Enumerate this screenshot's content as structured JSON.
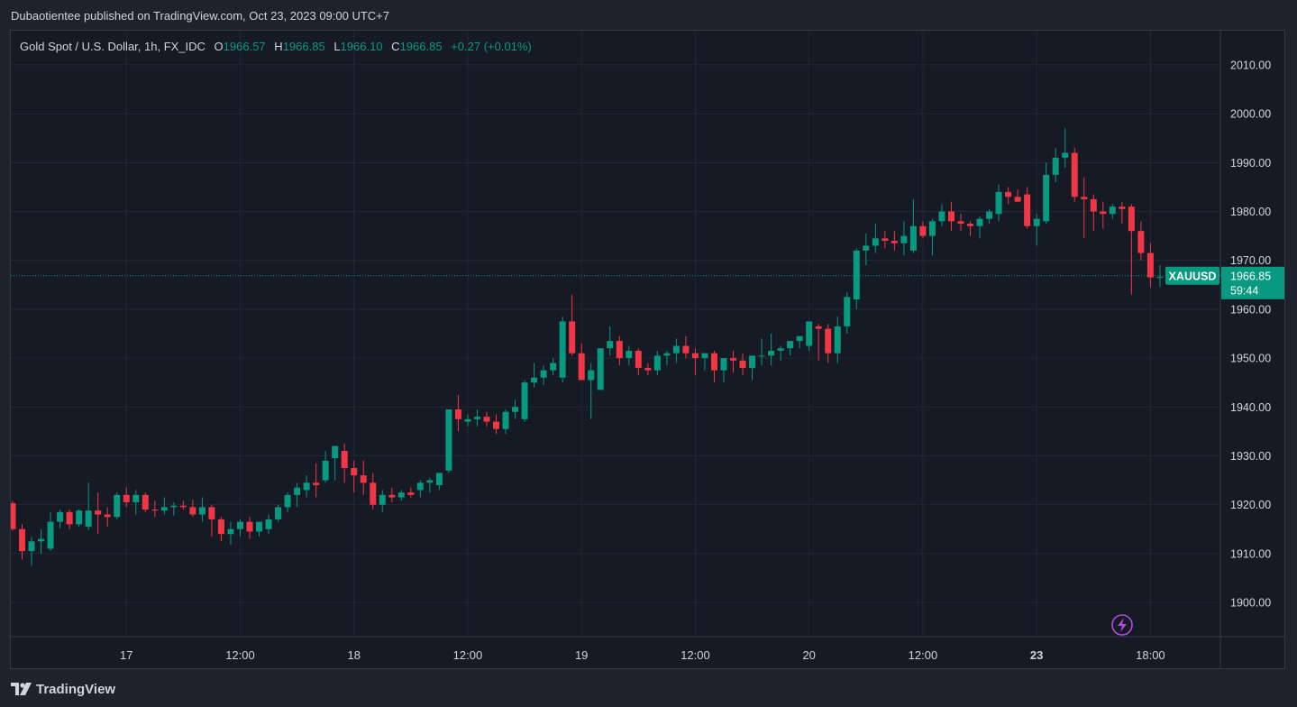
{
  "header": {
    "published": "Dubaotientee published on TradingView.com, Oct 23, 2023 09:00 UTC+7"
  },
  "legend": {
    "symbol": "Gold Spot / U.S. Dollar, 1h, FX_IDC",
    "o_label": "O",
    "o_value": "1966.57",
    "h_label": "H",
    "h_value": "1966.85",
    "l_label": "L",
    "l_value": "1966.10",
    "c_label": "C",
    "c_value": "1966.85",
    "change": "+0.27 (+0.01%)"
  },
  "price_tag": {
    "symbol": "XAUUSD",
    "price": "1966.85",
    "countdown": "59:44"
  },
  "footer": {
    "brand": "TradingView"
  },
  "colors": {
    "up": "#089981",
    "down": "#f23645",
    "background": "#161a25",
    "grid": "#232733",
    "text": "#d1d4dc"
  },
  "icons": {
    "lightning": "lightning-icon",
    "logo": "tradingview-logo-icon"
  },
  "chart_data": {
    "type": "candlestick",
    "title": "Gold Spot / U.S. Dollar, 1h, FX_IDC",
    "y_ticks": [
      1900,
      1910,
      1920,
      1930,
      1940,
      1950,
      1960,
      1970,
      1980,
      1990,
      2000,
      2010
    ],
    "y_tick_labels": [
      "1900.00",
      "1910.00",
      "1920.00",
      "1930.00",
      "1940.00",
      "1950.00",
      "1960.00",
      "1970.00",
      "1980.00",
      "1990.00",
      "2000.00",
      "2010.00"
    ],
    "ylim": [
      1893,
      2017
    ],
    "x_ticks": [
      {
        "label": "17",
        "index": 12
      },
      {
        "label": "12:00",
        "index": 24
      },
      {
        "label": "18",
        "index": 36
      },
      {
        "label": "12:00",
        "index": 48
      },
      {
        "label": "19",
        "index": 60
      },
      {
        "label": "12:00",
        "index": 72
      },
      {
        "label": "20",
        "index": 84
      },
      {
        "label": "12:00",
        "index": 96
      },
      {
        "label": "23",
        "index": 108,
        "bold": true
      },
      {
        "label": "18:00",
        "index": 120
      }
    ],
    "last_price": 1966.85,
    "candles": [
      [
        1920.3,
        1920.8,
        1914.7,
        1915.0
      ],
      [
        1915.0,
        1916.0,
        1908.8,
        1910.5
      ],
      [
        1910.5,
        1913.4,
        1907.5,
        1912.5
      ],
      [
        1912.5,
        1915.0,
        1910.0,
        1913.0
      ],
      [
        1911.0,
        1918.5,
        1910.5,
        1916.5
      ],
      [
        1916.5,
        1919.0,
        1915.2,
        1918.5
      ],
      [
        1918.5,
        1919.0,
        1915.0,
        1916.0
      ],
      [
        1916.0,
        1919.0,
        1915.5,
        1918.8
      ],
      [
        1915.5,
        1924.5,
        1914.8,
        1918.8
      ],
      [
        1918.8,
        1922.5,
        1914.0,
        1918.0
      ],
      [
        1918.0,
        1919.5,
        1915.5,
        1917.5
      ],
      [
        1917.5,
        1922.5,
        1917.0,
        1922.0
      ],
      [
        1922.0,
        1923.5,
        1919.5,
        1920.5
      ],
      [
        1920.5,
        1923.0,
        1918.0,
        1922.0
      ],
      [
        1922.0,
        1922.5,
        1918.5,
        1919.0
      ],
      [
        1919.0,
        1920.8,
        1917.5,
        1918.8
      ],
      [
        1918.8,
        1921.5,
        1918.0,
        1919.5
      ],
      [
        1919.5,
        1920.5,
        1917.8,
        1919.8
      ],
      [
        1919.8,
        1920.8,
        1919.0,
        1919.5
      ],
      [
        1919.5,
        1921.0,
        1917.5,
        1918.0
      ],
      [
        1918.0,
        1921.5,
        1916.5,
        1919.5
      ],
      [
        1919.5,
        1920.0,
        1913.5,
        1917.0
      ],
      [
        1917.0,
        1917.5,
        1912.5,
        1914.0
      ],
      [
        1914.0,
        1916.5,
        1911.8,
        1915.0
      ],
      [
        1915.0,
        1917.0,
        1913.5,
        1916.5
      ],
      [
        1916.5,
        1917.5,
        1913.0,
        1914.5
      ],
      [
        1914.5,
        1916.5,
        1913.5,
        1916.5
      ],
      [
        1915.0,
        1918.0,
        1914.0,
        1917.0
      ],
      [
        1917.0,
        1920.0,
        1916.5,
        1919.5
      ],
      [
        1919.5,
        1922.5,
        1918.5,
        1922.0
      ],
      [
        1922.0,
        1924.5,
        1919.5,
        1923.5
      ],
      [
        1923.0,
        1926.0,
        1921.5,
        1924.5
      ],
      [
        1924.5,
        1928.5,
        1921.5,
        1924.0
      ],
      [
        1925.0,
        1931.0,
        1924.5,
        1929.0
      ],
      [
        1929.5,
        1932.0,
        1925.0,
        1932.0
      ],
      [
        1931.0,
        1932.5,
        1924.5,
        1927.5
      ],
      [
        1927.5,
        1929.0,
        1922.5,
        1926.0
      ],
      [
        1926.0,
        1929.0,
        1922.0,
        1924.5
      ],
      [
        1924.5,
        1926.5,
        1919.0,
        1920.0
      ],
      [
        1920.0,
        1923.0,
        1918.5,
        1922.0
      ],
      [
        1922.0,
        1923.5,
        1920.5,
        1921.5
      ],
      [
        1921.5,
        1923.0,
        1920.8,
        1922.5
      ],
      [
        1922.5,
        1923.5,
        1921.5,
        1922.0
      ],
      [
        1923.0,
        1925.0,
        1921.5,
        1924.5
      ],
      [
        1924.5,
        1925.5,
        1922.5,
        1925.0
      ],
      [
        1924.0,
        1926.5,
        1923.0,
        1926.5
      ],
      [
        1927.0,
        1939.5,
        1926.5,
        1939.5
      ],
      [
        1939.5,
        1942.5,
        1935.0,
        1937.5
      ],
      [
        1937.0,
        1938.5,
        1936.0,
        1937.5
      ],
      [
        1937.5,
        1939.5,
        1936.0,
        1938.0
      ],
      [
        1938.0,
        1939.0,
        1936.0,
        1937.0
      ],
      [
        1937.0,
        1938.5,
        1934.5,
        1935.5
      ],
      [
        1935.5,
        1939.5,
        1934.5,
        1939.0
      ],
      [
        1939.0,
        1941.5,
        1937.5,
        1940.0
      ],
      [
        1937.5,
        1945.5,
        1937.0,
        1945.0
      ],
      [
        1945.0,
        1949.0,
        1944.0,
        1946.0
      ],
      [
        1946.0,
        1948.5,
        1944.5,
        1947.5
      ],
      [
        1947.5,
        1950.0,
        1946.5,
        1949.0
      ],
      [
        1946.0,
        1958.5,
        1945.0,
        1957.5
      ],
      [
        1957.5,
        1963.0,
        1950.5,
        1951.0
      ],
      [
        1951.0,
        1953.0,
        1945.5,
        1945.5
      ],
      [
        1945.5,
        1949.0,
        1937.5,
        1947.5
      ],
      [
        1943.5,
        1952.0,
        1943.5,
        1952.0
      ],
      [
        1952.0,
        1956.5,
        1950.5,
        1953.5
      ],
      [
        1953.5,
        1954.5,
        1948.5,
        1950.0
      ],
      [
        1950.0,
        1952.5,
        1948.5,
        1951.5
      ],
      [
        1951.5,
        1952.0,
        1946.5,
        1948.0
      ],
      [
        1948.0,
        1949.0,
        1946.5,
        1947.5
      ],
      [
        1947.5,
        1951.5,
        1946.5,
        1950.5
      ],
      [
        1950.5,
        1951.5,
        1948.5,
        1951.0
      ],
      [
        1951.0,
        1954.0,
        1949.0,
        1952.5
      ],
      [
        1952.5,
        1954.5,
        1950.0,
        1951.0
      ],
      [
        1951.0,
        1952.0,
        1946.5,
        1950.0
      ],
      [
        1950.0,
        1951.0,
        1947.5,
        1951.0
      ],
      [
        1951.0,
        1951.5,
        1945.0,
        1947.5
      ],
      [
        1947.5,
        1950.0,
        1945.0,
        1950.0
      ],
      [
        1950.0,
        1951.5,
        1947.0,
        1949.5
      ],
      [
        1949.5,
        1951.0,
        1946.5,
        1948.0
      ],
      [
        1948.0,
        1950.5,
        1945.5,
        1950.5
      ],
      [
        1950.5,
        1954.0,
        1948.5,
        1950.5
      ],
      [
        1950.5,
        1955.0,
        1948.5,
        1951.5
      ],
      [
        1951.5,
        1952.5,
        1949.5,
        1952.0
      ],
      [
        1952.0,
        1953.0,
        1950.5,
        1953.5
      ],
      [
        1953.5,
        1954.5,
        1952.0,
        1954.5
      ],
      [
        1952.5,
        1957.5,
        1951.5,
        1957.5
      ],
      [
        1956.5,
        1957.0,
        1949.5,
        1956.0
      ],
      [
        1956.0,
        1957.0,
        1949.0,
        1951.0
      ],
      [
        1951.0,
        1958.5,
        1949.0,
        1956.5
      ],
      [
        1956.5,
        1963.5,
        1955.0,
        1962.5
      ],
      [
        1962.0,
        1972.5,
        1960.0,
        1972.0
      ],
      [
        1972.0,
        1975.5,
        1969.0,
        1973.0
      ],
      [
        1973.0,
        1977.5,
        1971.5,
        1974.5
      ],
      [
        1974.5,
        1976.0,
        1972.5,
        1974.0
      ],
      [
        1974.0,
        1976.0,
        1972.0,
        1973.5
      ],
      [
        1973.5,
        1978.0,
        1971.0,
        1975.0
      ],
      [
        1972.0,
        1982.5,
        1971.5,
        1977.0
      ],
      [
        1977.0,
        1978.0,
        1974.5,
        1975.0
      ],
      [
        1975.0,
        1978.5,
        1971.0,
        1978.0
      ],
      [
        1978.0,
        1981.5,
        1977.0,
        1980.0
      ],
      [
        1980.0,
        1982.0,
        1976.0,
        1978.0
      ],
      [
        1978.0,
        1979.5,
        1976.0,
        1977.5
      ],
      [
        1977.5,
        1978.0,
        1975.0,
        1977.0
      ],
      [
        1977.0,
        1979.0,
        1974.5,
        1978.5
      ],
      [
        1978.5,
        1980.5,
        1977.5,
        1980.0
      ],
      [
        1979.5,
        1985.5,
        1978.0,
        1984.0
      ],
      [
        1984.0,
        1985.0,
        1981.5,
        1983.0
      ],
      [
        1983.0,
        1984.5,
        1982.0,
        1982.0
      ],
      [
        1983.5,
        1985.0,
        1976.5,
        1977.0
      ],
      [
        1977.0,
        1979.5,
        1973.0,
        1978.5
      ],
      [
        1978.0,
        1990.0,
        1977.5,
        1987.5
      ],
      [
        1987.5,
        1993.0,
        1986.0,
        1991.0
      ],
      [
        1991.0,
        1997.0,
        1989.0,
        1992.0
      ],
      [
        1992.0,
        1993.0,
        1982.0,
        1983.0
      ],
      [
        1983.0,
        1987.0,
        1974.5,
        1982.5
      ],
      [
        1982.5,
        1983.5,
        1976.0,
        1980.0
      ],
      [
        1980.0,
        1982.0,
        1976.5,
        1979.5
      ],
      [
        1979.5,
        1981.5,
        1978.5,
        1981.0
      ],
      [
        1981.0,
        1982.0,
        1977.5,
        1980.5
      ],
      [
        1981.0,
        1981.5,
        1963.0,
        1976.0
      ],
      [
        1976.0,
        1978.0,
        1970.0,
        1971.5
      ],
      [
        1971.5,
        1973.5,
        1964.5,
        1966.5
      ],
      [
        1966.5,
        1969.0,
        1964.5,
        1966.6
      ],
      [
        1966.57,
        1966.85,
        1966.1,
        1966.85
      ]
    ]
  }
}
